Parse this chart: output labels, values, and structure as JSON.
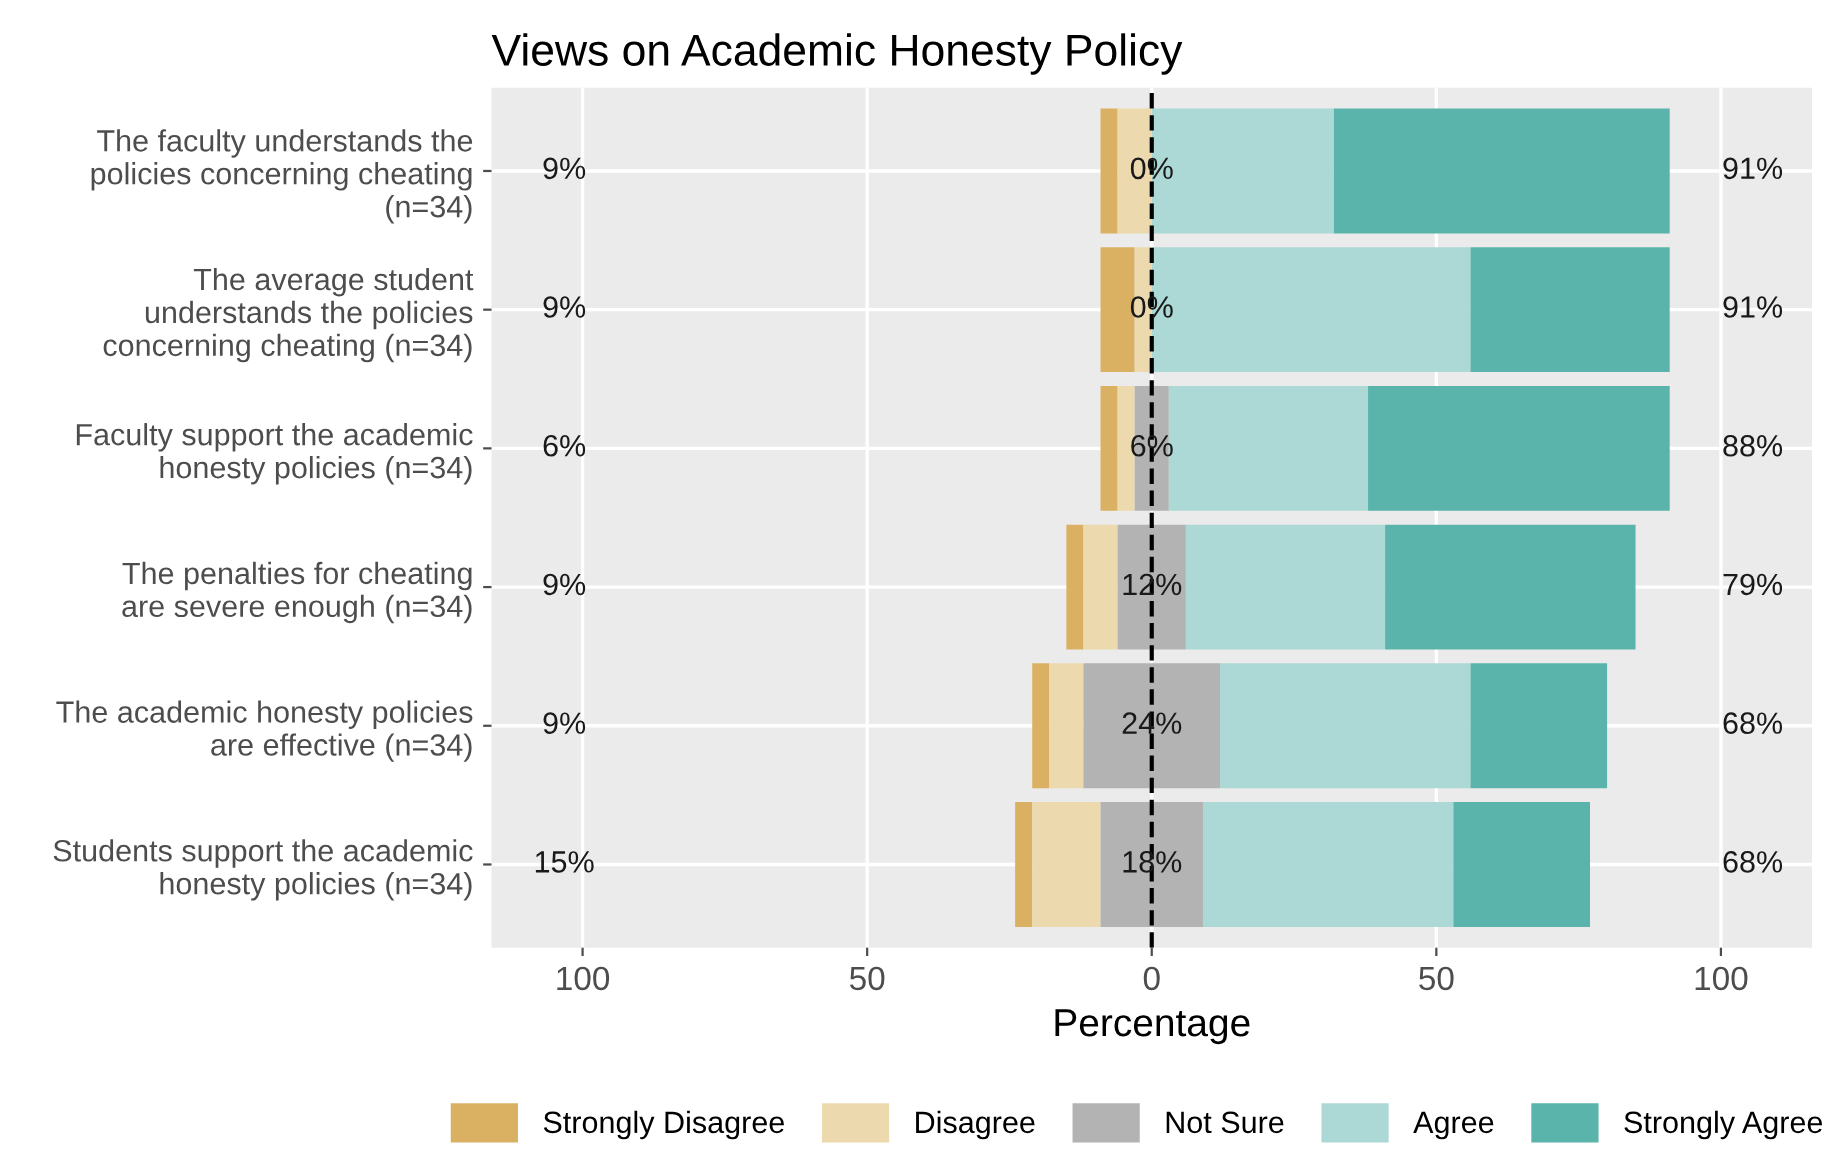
{
  "chart_data": {
    "type": "bar",
    "orientation": "horizontal",
    "title": "Views on Academic Honesty Policy",
    "xlabel": "Percentage",
    "categories": [
      "The faculty understands the\npolicies concerning cheating\n(n=34)",
      "The average student\nunderstands the policies\nconcerning cheating (n=34)",
      "Faculty support the academic\nhonesty policies (n=34)",
      "The penalties for cheating\nare severe enough (n=34)",
      "The academic honesty policies\nare effective (n=34)",
      "Students support the academic\nhonesty policies (n=34)"
    ],
    "series": [
      {
        "name": "Strongly Disagree",
        "color": "#dab062",
        "base": [
          -9,
          -9,
          -9,
          -15,
          -21,
          -24
        ],
        "values": [
          3,
          6,
          3,
          3,
          3,
          3
        ]
      },
      {
        "name": "Disagree",
        "color": "#ecd9ae",
        "base": [
          -6,
          -3,
          -6,
          -12,
          -18,
          -21
        ],
        "values": [
          6,
          3,
          3,
          6,
          6,
          12
        ]
      },
      {
        "name": "Not Sure",
        "color": "#b3b3b3",
        "base": [
          null,
          null,
          -3,
          -6,
          -12,
          -9
        ],
        "values": [
          0,
          0,
          6,
          12,
          24,
          18
        ],
        "value_labels": [
          "0%",
          "0%",
          "6%",
          "12%",
          "24%",
          "18%"
        ]
      },
      {
        "name": "Agree",
        "color": "#acd9d5",
        "base": [
          0,
          0,
          3,
          6,
          12,
          9
        ],
        "values": [
          32,
          56,
          35,
          35,
          44,
          44
        ]
      },
      {
        "name": "Strongly Agree",
        "color": "#5ab4ac",
        "base": [
          32,
          56,
          38,
          41,
          56,
          53
        ],
        "values": [
          59,
          35,
          53,
          44,
          24,
          24
        ]
      }
    ],
    "annotations": [
      "9%",
      "91%",
      "9%",
      "91%",
      "6%",
      "88%",
      "9%",
      "79%",
      "9%",
      "68%",
      "15%",
      "68%"
    ],
    "xlim": [
      -116,
      116
    ],
    "xticks": [
      {
        "value": -100,
        "label": "100"
      },
      {
        "value": -50,
        "label": "50"
      },
      0,
      50,
      100
    ],
    "ref_lines": [
      {
        "axis": "x",
        "value": 0,
        "color": "#000000",
        "line_style": "dashed"
      }
    ],
    "grid": true,
    "legend": "bottom"
  }
}
